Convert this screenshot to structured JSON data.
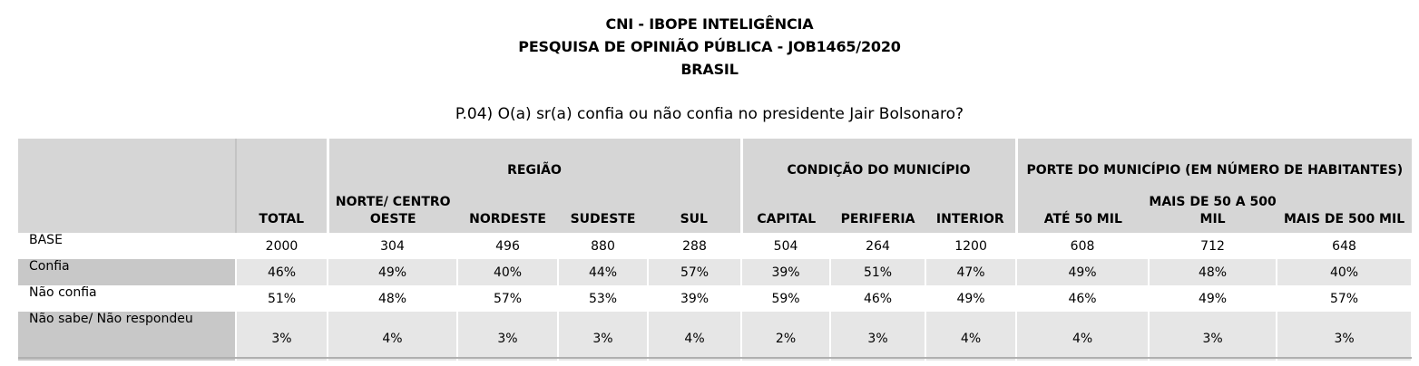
{
  "header": {
    "line1": "CNI - IBOPE INTELIGÊNCIA",
    "line2": "PESQUISA DE OPINIÃO PÚBLICA - JOB1465/2020",
    "line3": "BRASIL"
  },
  "question": "P.04) O(a) sr(a) confia ou não confia no presidente Jair Bolsonaro?",
  "table": {
    "groups": {
      "regiao": "REGIÃO",
      "condicao": "CONDIÇÃO DO MUNICÍPIO",
      "porte": "PORTE DO MUNICÍPIO (EM NÚMERO DE HABITANTES)"
    },
    "columns": [
      "TOTAL",
      "NORTE/ CENTRO OESTE",
      "NORDESTE",
      "SUDESTE",
      "SUL",
      "CAPITAL",
      "PERIFERIA",
      "INTERIOR",
      "ATÉ 50 MIL",
      "MAIS DE 50 A 500 MIL",
      "MAIS DE 500 MIL"
    ],
    "rows": [
      {
        "label": "BASE",
        "values": [
          "2000",
          "304",
          "496",
          "880",
          "288",
          "504",
          "264",
          "1200",
          "608",
          "712",
          "648"
        ]
      },
      {
        "label": "Confia",
        "values": [
          "46%",
          "49%",
          "40%",
          "44%",
          "57%",
          "39%",
          "51%",
          "47%",
          "49%",
          "48%",
          "40%"
        ]
      },
      {
        "label": "Não confia",
        "values": [
          "51%",
          "48%",
          "57%",
          "53%",
          "39%",
          "59%",
          "46%",
          "49%",
          "46%",
          "49%",
          "57%"
        ]
      },
      {
        "label": "Não sabe/ Não respondeu",
        "values": [
          "3%",
          "4%",
          "3%",
          "3%",
          "4%",
          "2%",
          "3%",
          "4%",
          "4%",
          "3%",
          "3%"
        ]
      }
    ]
  }
}
